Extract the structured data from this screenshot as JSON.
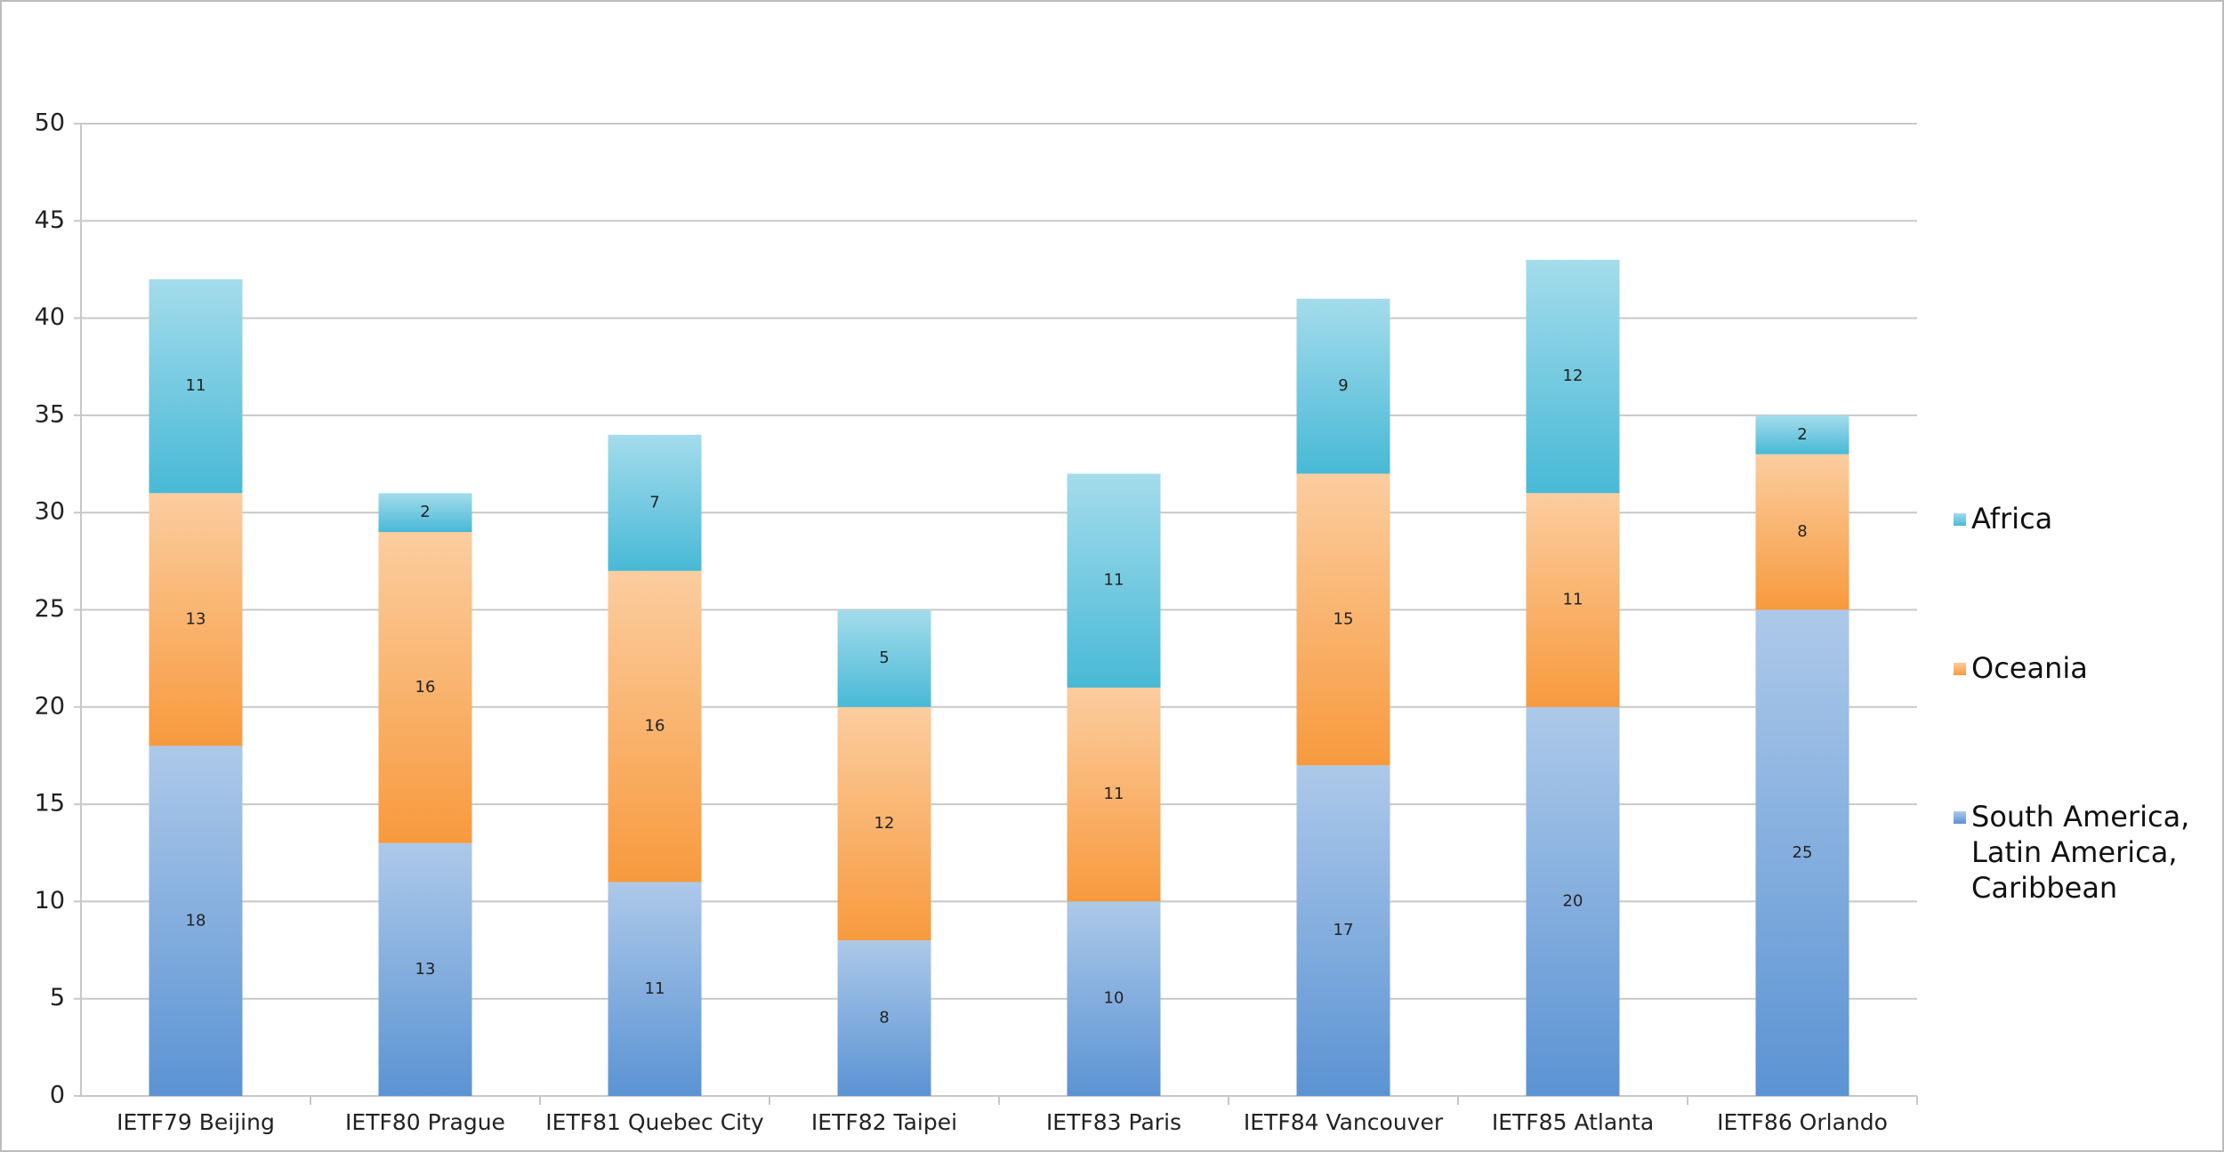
{
  "chart_data": {
    "type": "stacked-bar",
    "categories": [
      "IETF79 Beijing",
      "IETF80 Prague",
      "IETF81 Quebec City",
      "IETF82 Taipei",
      "IETF83 Paris",
      "IETF84 Vancouver",
      "IETF85 Atlanta",
      "IETF86 Orlando"
    ],
    "series": [
      {
        "name": "South America, Latin America, Caribbean",
        "color": "#5b93d3",
        "values": [
          18,
          13,
          11,
          8,
          10,
          17,
          20,
          25
        ]
      },
      {
        "name": "Oceania",
        "color": "#f79a3e",
        "values": [
          13,
          16,
          16,
          12,
          11,
          15,
          11,
          8
        ]
      },
      {
        "name": "Africa",
        "color": "#48b9d6",
        "values": [
          11,
          2,
          7,
          5,
          11,
          9,
          12,
          2
        ]
      }
    ],
    "ylim": [
      0,
      50
    ],
    "yticks": [
      0,
      5,
      10,
      15,
      20,
      25,
      30,
      35,
      40,
      45,
      50
    ],
    "grid": true,
    "legend": "right"
  }
}
